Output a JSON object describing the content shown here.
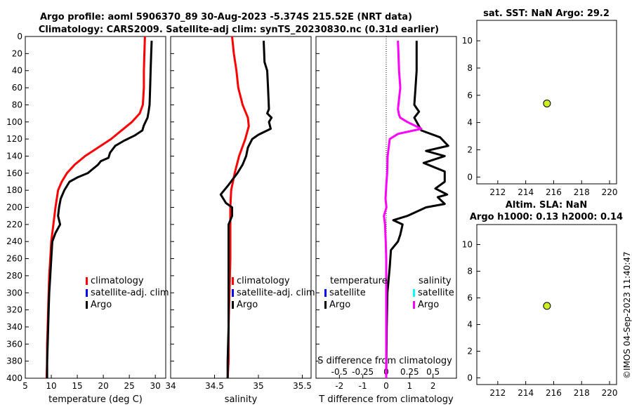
{
  "titles": {
    "line1": "Argo profile: aoml 5906370_89 30-Aug-2023 -5.374S 215.52E (NRT data)",
    "line2": "Climatology: CARS2009. Satellite-adj clim: synTS_20230830.nc (0.31d earlier)",
    "sst": "sat. SST: NaN Argo: 29.2",
    "sla1": "Altim. SLA: NaN",
    "sla2": "Argo h1000: 0.13 h2000: 0.14"
  },
  "stamp": "©IMOS 04-Sep-2023 11:40:47",
  "colors": {
    "argo": "#000000",
    "climatology": "#ff0000",
    "satellite": "#0000ff",
    "satellite_s": "#00ffff",
    "argo_s": "#ff00ff",
    "marker_fill": "#ccee22"
  },
  "chart_data": [
    {
      "type": "line",
      "name": "temperature",
      "xlabel": "temperature (deg C)",
      "ylim": [
        0,
        400
      ],
      "xlim": [
        5,
        32
      ],
      "xticks": [
        5,
        10,
        15,
        20,
        25,
        30
      ],
      "yticks": [
        0,
        20,
        40,
        60,
        80,
        100,
        120,
        140,
        160,
        180,
        200,
        220,
        240,
        260,
        280,
        300,
        320,
        340,
        360,
        380,
        400
      ],
      "legend": [
        "climatology",
        "satellite-adj. clim",
        "Argo"
      ],
      "series": [
        {
          "name": "climatology",
          "color": "#ff0000",
          "points": [
            [
              28,
              0
            ],
            [
              27.9,
              20
            ],
            [
              27.8,
              40
            ],
            [
              27.8,
              60
            ],
            [
              27.6,
              80
            ],
            [
              27,
              90
            ],
            [
              25.5,
              100
            ],
            [
              23.5,
              110
            ],
            [
              21.5,
              120
            ],
            [
              19,
              130
            ],
            [
              16.5,
              140
            ],
            [
              14.5,
              150
            ],
            [
              13,
              160
            ],
            [
              12,
              170
            ],
            [
              11.3,
              180
            ],
            [
              10.8,
              200
            ],
            [
              10.4,
              220
            ],
            [
              10,
              240
            ],
            [
              9.8,
              260
            ],
            [
              9.6,
              280
            ],
            [
              9.5,
              300
            ],
            [
              9.4,
              320
            ],
            [
              9.3,
              340
            ],
            [
              9.2,
              360
            ],
            [
              9.2,
              380
            ],
            [
              9.1,
              400
            ]
          ]
        },
        {
          "name": "Argo",
          "color": "#000000",
          "points": [
            [
              29.3,
              5
            ],
            [
              29.2,
              20
            ],
            [
              29.1,
              40
            ],
            [
              29,
              60
            ],
            [
              28.9,
              80
            ],
            [
              28.7,
              88
            ],
            [
              28.5,
              95
            ],
            [
              27.8,
              104
            ],
            [
              27.5,
              110
            ],
            [
              26,
              116
            ],
            [
              24,
              122
            ],
            [
              22.3,
              128
            ],
            [
              21.3,
              136
            ],
            [
              21,
              142
            ],
            [
              19.5,
              146
            ],
            [
              19,
              150
            ],
            [
              17,
              160
            ],
            [
              15,
              165
            ],
            [
              13.5,
              170
            ],
            [
              12.5,
              180
            ],
            [
              11.8,
              190
            ],
            [
              11.5,
              200
            ],
            [
              11.3,
              210
            ],
            [
              11.7,
              220
            ],
            [
              10.8,
              230
            ],
            [
              10.2,
              240
            ],
            [
              10,
              260
            ],
            [
              9.8,
              280
            ],
            [
              9.6,
              300
            ],
            [
              9.5,
              320
            ],
            [
              9.4,
              340
            ],
            [
              9.3,
              360
            ],
            [
              9.2,
              380
            ],
            [
              9.2,
              400
            ]
          ]
        }
      ]
    },
    {
      "type": "line",
      "name": "salinity",
      "xlabel": "salinity",
      "ylim": [
        0,
        400
      ],
      "xlim": [
        34,
        35.6
      ],
      "xticks": [
        34,
        34.5,
        35,
        35.5
      ],
      "legend": [
        "climatology",
        "satellite-adj. clim",
        "Argo"
      ],
      "series": [
        {
          "name": "climatology",
          "color": "#ff0000",
          "points": [
            [
              34.7,
              0
            ],
            [
              34.72,
              20
            ],
            [
              34.75,
              40
            ],
            [
              34.77,
              60
            ],
            [
              34.82,
              80
            ],
            [
              34.88,
              95
            ],
            [
              34.89,
              105
            ],
            [
              34.85,
              120
            ],
            [
              34.78,
              140
            ],
            [
              34.73,
              160
            ],
            [
              34.69,
              180
            ],
            [
              34.68,
              200
            ],
            [
              34.68,
              220
            ],
            [
              34.68,
              260
            ],
            [
              34.67,
              300
            ],
            [
              34.66,
              340
            ],
            [
              34.66,
              380
            ],
            [
              34.65,
              400
            ]
          ]
        },
        {
          "name": "Argo",
          "color": "#000000",
          "points": [
            [
              35.06,
              5
            ],
            [
              35.07,
              30
            ],
            [
              35.1,
              40
            ],
            [
              35.11,
              60
            ],
            [
              35.12,
              85
            ],
            [
              35.1,
              90
            ],
            [
              35.15,
              95
            ],
            [
              35.12,
              100
            ],
            [
              35.14,
              108
            ],
            [
              35,
              115
            ],
            [
              34.93,
              120
            ],
            [
              34.88,
              130
            ],
            [
              34.86,
              140
            ],
            [
              34.82,
              150
            ],
            [
              34.76,
              160
            ],
            [
              34.65,
              175
            ],
            [
              34.57,
              185
            ],
            [
              34.63,
              195
            ],
            [
              34.7,
              200
            ],
            [
              34.7,
              210
            ],
            [
              34.66,
              220
            ],
            [
              34.66,
              240
            ],
            [
              34.66,
              260
            ],
            [
              34.66,
              300
            ],
            [
              34.66,
              340
            ],
            [
              34.65,
              380
            ],
            [
              34.65,
              400
            ]
          ]
        }
      ]
    },
    {
      "type": "line",
      "name": "difference",
      "xlabel": "T difference from climatology",
      "xlabel_top": "S difference from climatology",
      "ylim": [
        0,
        400
      ],
      "xlim": [
        -3,
        3
      ],
      "xticks": [
        -2,
        -1,
        0,
        1,
        2
      ],
      "xticks_s": [
        "-0.5",
        "-0.25",
        "0",
        "0.25",
        "0.5"
      ],
      "legend_t": [
        "temperature",
        "satellite",
        "Argo"
      ],
      "legend_s": [
        "salinity",
        "satellite",
        "Argo"
      ],
      "series": [
        {
          "name": "T diff Argo",
          "color": "#000000",
          "points": [
            [
              1.3,
              5
            ],
            [
              1.3,
              40
            ],
            [
              1.25,
              60
            ],
            [
              1.2,
              80
            ],
            [
              1.4,
              88
            ],
            [
              1.2,
              95
            ],
            [
              1.5,
              110
            ],
            [
              2.3,
              118
            ],
            [
              2.65,
              128
            ],
            [
              1.7,
              134
            ],
            [
              2.5,
              140
            ],
            [
              1.6,
              148
            ],
            [
              2.5,
              158
            ],
            [
              2.5,
              170
            ],
            [
              2.1,
              178
            ],
            [
              2.6,
              185
            ],
            [
              2.2,
              188
            ],
            [
              2.5,
              196
            ],
            [
              1.7,
              200
            ],
            [
              0.9,
              210
            ],
            [
              0.3,
              215
            ],
            [
              0.7,
              220
            ],
            [
              0.6,
              232
            ],
            [
              0.5,
              240
            ],
            [
              0.2,
              250
            ],
            [
              0.15,
              270
            ],
            [
              0.05,
              300
            ],
            [
              0.02,
              340
            ],
            [
              0,
              400
            ]
          ]
        },
        {
          "name": "S diff Argo",
          "color": "#ff00ff",
          "points": [
            [
              0.5,
              5
            ],
            [
              0.55,
              40
            ],
            [
              0.6,
              60
            ],
            [
              0.5,
              85
            ],
            [
              0.55,
              92
            ],
            [
              0.6,
              95
            ],
            [
              0.9,
              100
            ],
            [
              1.5,
              108
            ],
            [
              0.5,
              114
            ],
            [
              0.15,
              120
            ],
            [
              0.06,
              140
            ],
            [
              0.04,
              160
            ],
            [
              0.0,
              175
            ],
            [
              -0.03,
              190
            ],
            [
              0.01,
              200
            ],
            [
              -0.1,
              210
            ],
            [
              -0.05,
              220
            ],
            [
              -0.02,
              240
            ],
            [
              0,
              260
            ],
            [
              0,
              300
            ],
            [
              0,
              340
            ],
            [
              0,
              400
            ]
          ]
        }
      ]
    },
    {
      "type": "scatter",
      "name": "sat SST",
      "xlim": [
        210.5,
        220.5
      ],
      "ylim": [
        -0.5,
        11.5
      ],
      "xticks": [
        212,
        214,
        216,
        218,
        220
      ],
      "yticks": [
        0,
        2,
        4,
        6,
        8,
        10
      ],
      "points": [
        [
          215.52,
          5.4
        ]
      ]
    },
    {
      "type": "scatter",
      "name": "Altim SLA",
      "xlim": [
        210.5,
        220.5
      ],
      "ylim": [
        -0.5,
        11.5
      ],
      "xticks": [
        212,
        214,
        216,
        218,
        220
      ],
      "yticks": [
        0,
        2,
        4,
        6,
        8,
        10
      ],
      "points": [
        [
          215.52,
          5.4
        ]
      ]
    }
  ]
}
